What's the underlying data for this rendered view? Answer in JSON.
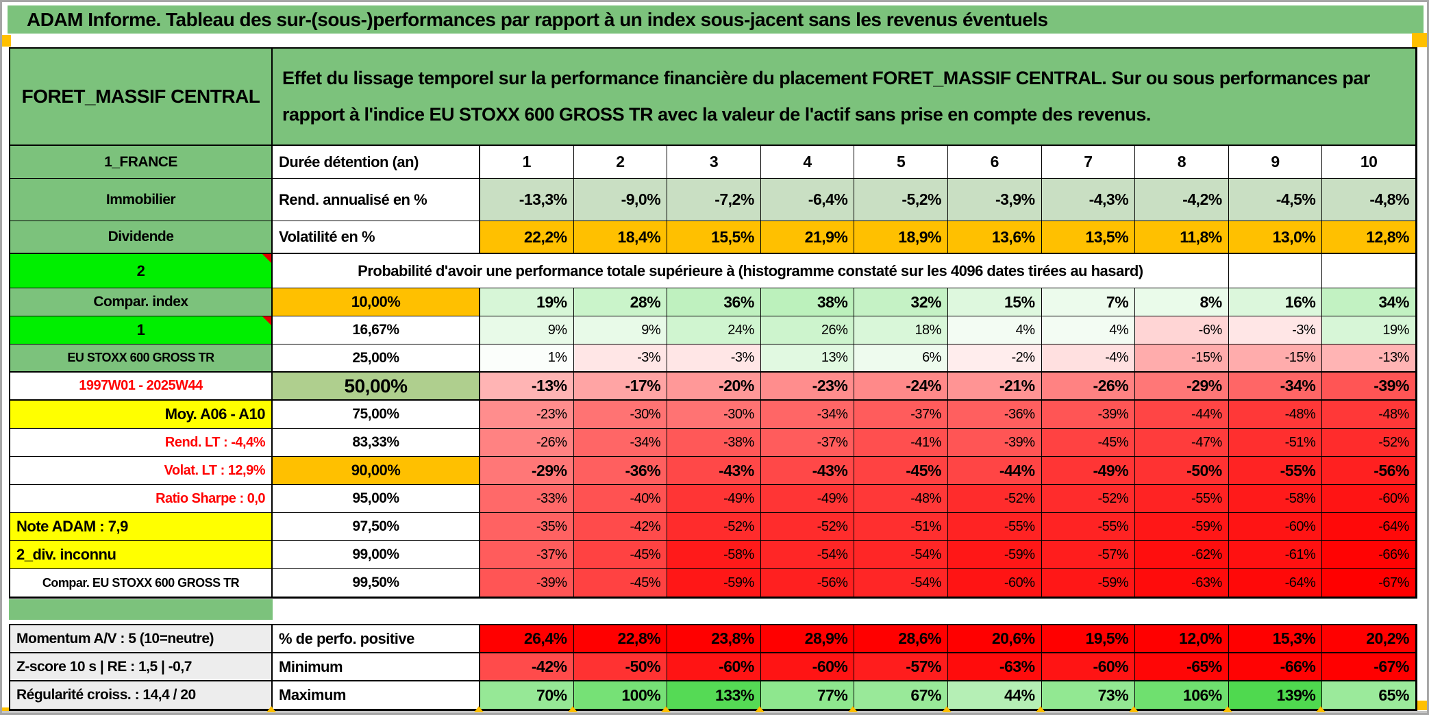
{
  "title": "ADAM Informe. Tableau des sur-(sous-)performances par rapport à un index sous-jacent sans les revenus éventuels",
  "header": {
    "asset": "FORET_MASSIF CENTRAL",
    "description": "Effet du lissage temporel sur la performance financière du placement FORET_MASSIF CENTRAL. Sur ou sous performances par rapport à l'indice EU STOXX 600 GROSS TR avec la valeur de l'actif sans prise en compte des revenus."
  },
  "info_rows": [
    {
      "label": "1_FRANCE",
      "metric": "Durée détention (an)",
      "bg": "#FFFFFF",
      "align": "center",
      "values": [
        "1",
        "2",
        "3",
        "4",
        "5",
        "6",
        "7",
        "8",
        "9",
        "10"
      ]
    },
    {
      "label": "Immobilier",
      "metric": "Rend. annualisé en %",
      "bg": "#C9DFC3",
      "align": "right",
      "values": [
        "-13,3%",
        "-9,0%",
        "-7,2%",
        "-6,4%",
        "-5,2%",
        "-3,9%",
        "-4,3%",
        "-4,2%",
        "-4,5%",
        "-4,8%"
      ]
    },
    {
      "label": "Dividende",
      "metric": "Volatilité en %",
      "bg": "#FFC000",
      "align": "right",
      "values": [
        "22,2%",
        "18,4%",
        "15,5%",
        "21,9%",
        "18,9%",
        "13,6%",
        "13,5%",
        "11,8%",
        "13,0%",
        "12,8%"
      ]
    }
  ],
  "banner": {
    "label": "2",
    "text": "Probabilité d'avoir une performance totale supérieure à (histogramme constaté sur les 4096 dates tirées au hasard)"
  },
  "probability_rows": [
    {
      "label": "Compar. index",
      "label_style": "green",
      "threshold": "10,00%",
      "threshold_style": "orange",
      "bold": true,
      "values": [
        "19%",
        "28%",
        "36%",
        "38%",
        "32%",
        "15%",
        "7%",
        "8%",
        "16%",
        "34%"
      ]
    },
    {
      "label": "1",
      "label_style": "flag",
      "threshold": "16,67%",
      "threshold_style": "plain",
      "bold": false,
      "values": [
        "9%",
        "9%",
        "24%",
        "26%",
        "18%",
        "4%",
        "4%",
        "-6%",
        "-3%",
        "19%"
      ]
    },
    {
      "label": "EU STOXX 600 GROSS TR",
      "label_style": "green",
      "small": true,
      "threshold": "25,00%",
      "threshold_style": "plain",
      "bold": false,
      "values": [
        "1%",
        "-3%",
        "-3%",
        "13%",
        "6%",
        "-2%",
        "-4%",
        "-15%",
        "-15%",
        "-13%"
      ]
    },
    {
      "label": "1997W01 - 2025W44",
      "label_style": "red-center",
      "threshold": "50,00%",
      "threshold_style": "sage",
      "bold": true,
      "emphasis": true,
      "values": [
        "-13%",
        "-17%",
        "-20%",
        "-23%",
        "-24%",
        "-21%",
        "-26%",
        "-29%",
        "-34%",
        "-39%"
      ]
    },
    {
      "label": "Moy. A06 - A10",
      "label_style": "yellow-right",
      "threshold": "75,00%",
      "threshold_style": "plain",
      "bold": false,
      "values": [
        "-23%",
        "-30%",
        "-30%",
        "-34%",
        "-37%",
        "-36%",
        "-39%",
        "-44%",
        "-48%",
        "-48%"
      ]
    },
    {
      "label": "Rend. LT :   -4,4%",
      "label_style": "red-right",
      "threshold": "83,33%",
      "threshold_style": "plain",
      "bold": false,
      "values": [
        "-26%",
        "-34%",
        "-38%",
        "-37%",
        "-41%",
        "-39%",
        "-45%",
        "-47%",
        "-51%",
        "-52%"
      ]
    },
    {
      "label": "Volat. LT :   12,9%",
      "label_style": "red-right",
      "threshold": "90,00%",
      "threshold_style": "orange",
      "bold": true,
      "values": [
        "-29%",
        "-36%",
        "-43%",
        "-43%",
        "-45%",
        "-44%",
        "-49%",
        "-50%",
        "-55%",
        "-56%"
      ]
    },
    {
      "label": "Ratio Sharpe :   0,0",
      "label_style": "red-right",
      "threshold": "95,00%",
      "threshold_style": "plain",
      "bold": false,
      "values": [
        "-33%",
        "-40%",
        "-49%",
        "-49%",
        "-48%",
        "-52%",
        "-52%",
        "-55%",
        "-58%",
        "-60%"
      ]
    },
    {
      "label": "Note ADAM : 7,9",
      "label_style": "yellow-left",
      "threshold": "97,50%",
      "threshold_style": "plain",
      "bold": false,
      "values": [
        "-35%",
        "-42%",
        "-52%",
        "-52%",
        "-51%",
        "-55%",
        "-55%",
        "-59%",
        "-60%",
        "-64%"
      ]
    },
    {
      "label": "2_div. inconnu",
      "label_style": "yellow-left",
      "threshold": "99,00%",
      "threshold_style": "plain",
      "bold": false,
      "values": [
        "-37%",
        "-45%",
        "-58%",
        "-54%",
        "-54%",
        "-59%",
        "-57%",
        "-62%",
        "-61%",
        "-66%"
      ]
    },
    {
      "label": "Compar. EU STOXX 600 GROSS TR",
      "label_style": "white-center",
      "small": true,
      "threshold": "99,50%",
      "threshold_style": "plain",
      "bold": false,
      "values": [
        "-39%",
        "-45%",
        "-59%",
        "-56%",
        "-54%",
        "-60%",
        "-59%",
        "-63%",
        "-64%",
        "-67%"
      ]
    }
  ],
  "summary_rows": [
    {
      "label": "Momentum A/V : 5 (10=neutre)",
      "metric": "% de perfo. positive",
      "mode": "red",
      "values": [
        "26,4%",
        "22,8%",
        "23,8%",
        "28,9%",
        "28,6%",
        "20,6%",
        "19,5%",
        "12,0%",
        "15,3%",
        "20,2%"
      ]
    },
    {
      "label": "Z-score 10 s  |  RE : 1,5  |  -0,7",
      "metric": "Minimum",
      "mode": "scale",
      "values": [
        "-42%",
        "-50%",
        "-60%",
        "-60%",
        "-57%",
        "-63%",
        "-60%",
        "-65%",
        "-66%",
        "-67%"
      ]
    },
    {
      "label": "Régularité croiss. : 14,4 / 20",
      "metric": "Maximum",
      "mode": "scale",
      "values": [
        "70%",
        "100%",
        "133%",
        "77%",
        "67%",
        "44%",
        "73%",
        "106%",
        "139%",
        "65%"
      ]
    }
  ],
  "colors": {
    "title_green": "#7CC27C",
    "bright_green": "#00EF00",
    "orange": "#FFC000",
    "sage": "#AFCF8E",
    "rend_bg": "#C9DFC3",
    "yellow": "#FFFF00",
    "grey_label": "#EDEDED",
    "static_red": "#FF0000",
    "scale_red": "#FF0000",
    "scale_green": "#4FD94F",
    "scale_mid": "#FFFFFF"
  },
  "scale": {
    "neg_limit": 67,
    "pos_limit": 139,
    "exponent": 0.75
  }
}
